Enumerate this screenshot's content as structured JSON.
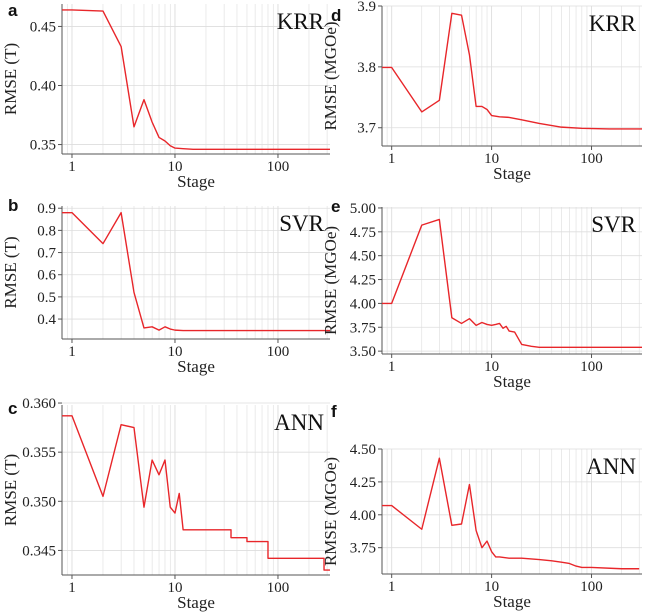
{
  "figure": {
    "accent_color": "#e8262a",
    "grid_color": "#dddddd",
    "axis_color": "#555555"
  },
  "chart_data": [
    {
      "id": "a",
      "letter": "a",
      "type": "line",
      "model": "KRR",
      "xlabel": "Stage",
      "ylabel": "RMSE (T)",
      "xscale": "log",
      "xlim": [
        0.8,
        320
      ],
      "ylim": [
        0.342,
        0.469
      ],
      "xticks": [
        1,
        10,
        100
      ],
      "xtick_labels": [
        "1",
        "10",
        "100"
      ],
      "yticks": [
        0.35,
        0.4,
        0.45
      ],
      "ytick_labels": [
        "0.35",
        "0.40",
        "0.45"
      ],
      "x": [
        0.8,
        1,
        2,
        3,
        4,
        5,
        6,
        7,
        8,
        9,
        10,
        12,
        15,
        20,
        30,
        50,
        100,
        200,
        320
      ],
      "y": [
        0.464,
        0.464,
        0.463,
        0.433,
        0.365,
        0.388,
        0.369,
        0.356,
        0.353,
        0.349,
        0.347,
        0.3465,
        0.346,
        0.346,
        0.346,
        0.346,
        0.346,
        0.346,
        0.346
      ]
    },
    {
      "id": "b",
      "letter": "b",
      "type": "line",
      "model": "SVR",
      "xlabel": "Stage",
      "ylabel": "RMSE (T)",
      "xscale": "log",
      "xlim": [
        0.8,
        320
      ],
      "ylim": [
        0.31,
        0.91
      ],
      "xticks": [
        1,
        10,
        100
      ],
      "xtick_labels": [
        "1",
        "10",
        "100"
      ],
      "yticks": [
        0.4,
        0.5,
        0.6,
        0.7,
        0.8,
        0.9
      ],
      "ytick_labels": [
        "0.4",
        "0.5",
        "0.6",
        "0.7",
        "0.8",
        "0.9"
      ],
      "x": [
        0.8,
        1,
        2,
        3,
        4,
        5,
        6,
        7,
        8,
        9,
        10,
        12,
        15,
        20,
        50,
        100,
        320
      ],
      "y": [
        0.88,
        0.88,
        0.74,
        0.88,
        0.52,
        0.36,
        0.365,
        0.35,
        0.365,
        0.355,
        0.35,
        0.348,
        0.348,
        0.348,
        0.348,
        0.348,
        0.348
      ]
    },
    {
      "id": "c",
      "letter": "c",
      "type": "line",
      "model": "ANN",
      "xlabel": "Stage",
      "ylabel": "RMSE (T)",
      "xscale": "log",
      "xlim": [
        0.8,
        320
      ],
      "ylim": [
        0.3425,
        0.3598
      ],
      "xticks": [
        1,
        10,
        100
      ],
      "xtick_labels": [
        "1",
        "10",
        "100"
      ],
      "yticks": [
        0.345,
        0.35,
        0.355,
        0.36
      ],
      "ytick_labels": [
        "0.345",
        "0.350",
        "0.355",
        "0.360"
      ],
      "x": [
        0.8,
        1,
        2,
        3,
        4,
        5,
        6,
        7,
        8,
        9,
        10,
        11,
        12,
        20,
        35,
        35,
        50,
        50,
        80,
        80,
        280,
        280,
        320
      ],
      "y": [
        0.3587,
        0.3587,
        0.3505,
        0.3578,
        0.3575,
        0.3494,
        0.3542,
        0.3527,
        0.3542,
        0.3494,
        0.3488,
        0.3508,
        0.3471,
        0.3471,
        0.3471,
        0.3463,
        0.3463,
        0.3459,
        0.3459,
        0.3442,
        0.3442,
        0.343,
        0.343
      ]
    },
    {
      "id": "d",
      "letter": "d",
      "type": "line",
      "model": "KRR",
      "xlabel": "Stage",
      "ylabel": "RMSE (MGOe)",
      "xscale": "log",
      "xlim": [
        0.8,
        320
      ],
      "ylim": [
        3.67,
        3.9
      ],
      "xticks": [
        1,
        10,
        100
      ],
      "xtick_labels": [
        "1",
        "10",
        "100"
      ],
      "yticks": [
        3.7,
        3.8,
        3.9
      ],
      "ytick_labels": [
        "3.7",
        "3.8",
        "3.9"
      ],
      "x": [
        0.8,
        1,
        2,
        3,
        4,
        5,
        6,
        7,
        8,
        9,
        10,
        12,
        15,
        20,
        30,
        50,
        80,
        150,
        320
      ],
      "y": [
        3.799,
        3.799,
        3.726,
        3.745,
        3.888,
        3.885,
        3.82,
        3.735,
        3.735,
        3.73,
        3.72,
        3.718,
        3.717,
        3.713,
        3.707,
        3.701,
        3.699,
        3.698,
        3.698
      ]
    },
    {
      "id": "e",
      "letter": "e",
      "type": "line",
      "model": "SVR",
      "xlabel": "Stage",
      "ylabel": "RMSE (MGOe)",
      "xscale": "log",
      "xlim": [
        0.8,
        320
      ],
      "ylim": [
        3.47,
        5.01
      ],
      "xticks": [
        1,
        10,
        100
      ],
      "xtick_labels": [
        "1",
        "10",
        "100"
      ],
      "yticks": [
        3.5,
        3.75,
        4.0,
        4.25,
        4.5,
        4.75,
        5.0
      ],
      "ytick_labels": [
        "3.50",
        "3.75",
        "4.00",
        "4.25",
        "4.50",
        "4.75",
        "5.00"
      ],
      "x": [
        0.8,
        1,
        2,
        3,
        4,
        5,
        6,
        7,
        8,
        9,
        10,
        11,
        12,
        13,
        14,
        15,
        17,
        20,
        25,
        30,
        50,
        100,
        320
      ],
      "y": [
        4.0,
        4.0,
        4.82,
        4.88,
        3.85,
        3.79,
        3.84,
        3.77,
        3.8,
        3.78,
        3.77,
        3.78,
        3.79,
        3.74,
        3.76,
        3.71,
        3.7,
        3.57,
        3.55,
        3.54,
        3.54,
        3.54,
        3.54
      ]
    },
    {
      "id": "f",
      "letter": "f",
      "type": "line",
      "model": "ANN",
      "xlabel": "Stage",
      "ylabel": "RMSE (MGOe)",
      "xscale": "log",
      "xlim": [
        0.8,
        320
      ],
      "ylim": [
        3.55,
        4.5
      ],
      "xticks": [
        1,
        10,
        100
      ],
      "xtick_labels": [
        "1",
        "10",
        "100"
      ],
      "yticks": [
        3.75,
        4.0,
        4.25,
        4.5
      ],
      "ytick_labels": [
        "3.75",
        "4.00",
        "4.25",
        "4.50"
      ],
      "x": [
        0.8,
        1,
        2,
        3,
        4,
        5,
        6,
        7,
        8,
        9,
        10,
        11,
        12,
        15,
        20,
        30,
        40,
        50,
        60,
        70,
        80,
        100,
        200,
        300
      ],
      "y": [
        4.07,
        4.07,
        3.89,
        4.43,
        3.92,
        3.93,
        4.23,
        3.88,
        3.75,
        3.8,
        3.72,
        3.68,
        3.68,
        3.67,
        3.67,
        3.66,
        3.65,
        3.64,
        3.63,
        3.61,
        3.6,
        3.6,
        3.59,
        3.59
      ]
    }
  ]
}
